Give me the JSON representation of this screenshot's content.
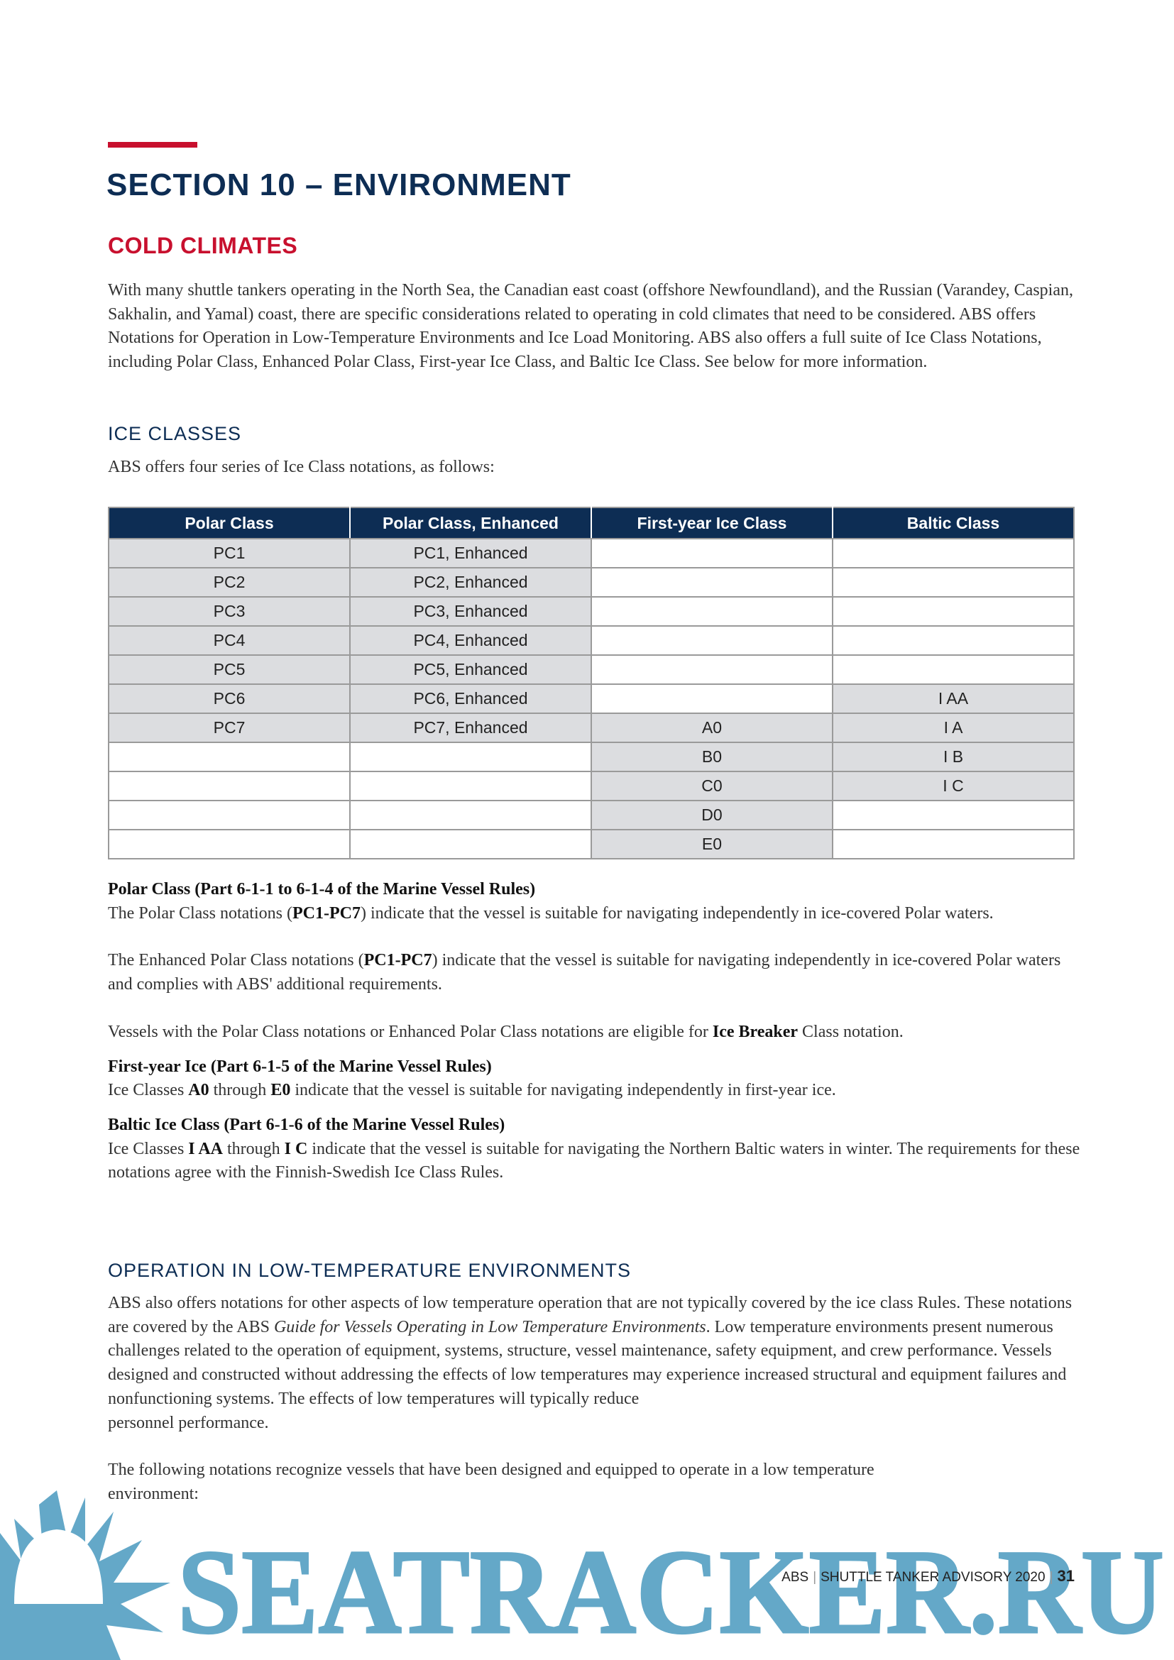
{
  "section_title": "SECTION 10 – ENVIRONMENT",
  "subsection_title": "COLD CLIMATES",
  "intro": "With many shuttle tankers operating in the North Sea, the Canadian east coast (offshore Newfoundland), and the Russian (Varandey, Caspian, Sakhalin, and Yamal) coast, there are specific considerations related to operating in cold climates that need to be considered. ABS offers Notations for Operation in Low-Temperature Environments and Ice Load Monitoring. ABS also offers a full suite of Ice Class Notations, including Polar Class, Enhanced Polar Class, First-year Ice Class, and Baltic Ice Class. See below for more information.",
  "ice_classes": {
    "heading": "ICE CLASSES",
    "lead": "ABS offers four series of Ice Class notations, as follows:",
    "table": {
      "headers": [
        "Polar Class",
        "Polar Class, Enhanced",
        "First-year Ice Class",
        "Baltic Class"
      ],
      "rows": [
        [
          "PC1",
          "PC1, Enhanced",
          "",
          ""
        ],
        [
          "PC2",
          "PC2, Enhanced",
          "",
          ""
        ],
        [
          "PC3",
          "PC3, Enhanced",
          "",
          ""
        ],
        [
          "PC4",
          "PC4, Enhanced",
          "",
          ""
        ],
        [
          "PC5",
          "PC5, Enhanced",
          "",
          ""
        ],
        [
          "PC6",
          "PC6, Enhanced",
          "",
          "I AA"
        ],
        [
          "PC7",
          "PC7, Enhanced",
          "A0",
          "I A"
        ],
        [
          "",
          "",
          "B0",
          "I B"
        ],
        [
          "",
          "",
          "C0",
          "I C"
        ],
        [
          "",
          "",
          "D0",
          ""
        ],
        [
          "",
          "",
          "E0",
          ""
        ]
      ]
    }
  },
  "polar": {
    "title": "Polar Class (Part 6-1-1 to 6-1-4 of the Marine Vessel Rules)",
    "p1_a": "The Polar Class notations (",
    "p1_b": "PC1-PC7",
    "p1_c": ") indicate that the vessel is suitable for navigating independently in ice-covered Polar waters.",
    "p2_a": "The Enhanced Polar Class notations (",
    "p2_b": "PC1-PC7",
    "p2_c": ") indicate that the vessel is suitable for navigating independently in ice-covered Polar waters and complies with ABS' additional requirements.",
    "p3_a": "Vessels with the Polar Class notations or Enhanced Polar Class notations are eligible for ",
    "p3_b": "Ice Breaker",
    "p3_c": " Class notation."
  },
  "first_year": {
    "title": "First-year Ice (Part 6-1-5 of the Marine Vessel Rules)",
    "a": "Ice Classes ",
    "b": "A0",
    "c": " through ",
    "d": "E0",
    "e": " indicate that the vessel is suitable for navigating independently in first-year ice."
  },
  "baltic": {
    "title": "Baltic Ice Class (Part 6-1-6 of the Marine Vessel Rules)",
    "a": "Ice Classes ",
    "b": "I AA",
    "c": " through ",
    "d": "I C",
    "e": " indicate that the vessel is suitable for navigating the Northern Baltic waters in winter. The requirements for these notations agree with the Finnish-Swedish Ice Class Rules."
  },
  "low_temp": {
    "heading": "OPERATION IN LOW-TEMPERATURE ENVIRONMENTS",
    "p1_a": "ABS also offers notations for other aspects of low temperature operation that are not typically covered by the ice class Rules. These notations are covered by the ABS ",
    "p1_i": "Guide for Vessels Operating in Low Temperature Environments",
    "p1_b": ". Low temperature environments present numerous challenges related to the operation of equipment, systems, structure, vessel maintenance, safety equipment, and crew performance. Vessels designed and constructed without addressing the effects of low temperatures may experience increased structural and equipment failures and nonfunctioning systems. The effects of low temperatures will typically reduce",
    "p1_c": "personnel performance.",
    "p2": "The following notations recognize vessels that have been designed and equipped to operate in a low temperature environment:"
  },
  "footer": {
    "brand": "ABS",
    "publication": "SHUTTLE TANKER ADVISORY 2020",
    "page": "31"
  },
  "watermark": {
    "text": "SEATRACKER.RU",
    "color": "#64a8c8"
  },
  "colors": {
    "navy": "#0d2d54",
    "red": "#c8102e",
    "cell_fill": "#dcdde0"
  }
}
